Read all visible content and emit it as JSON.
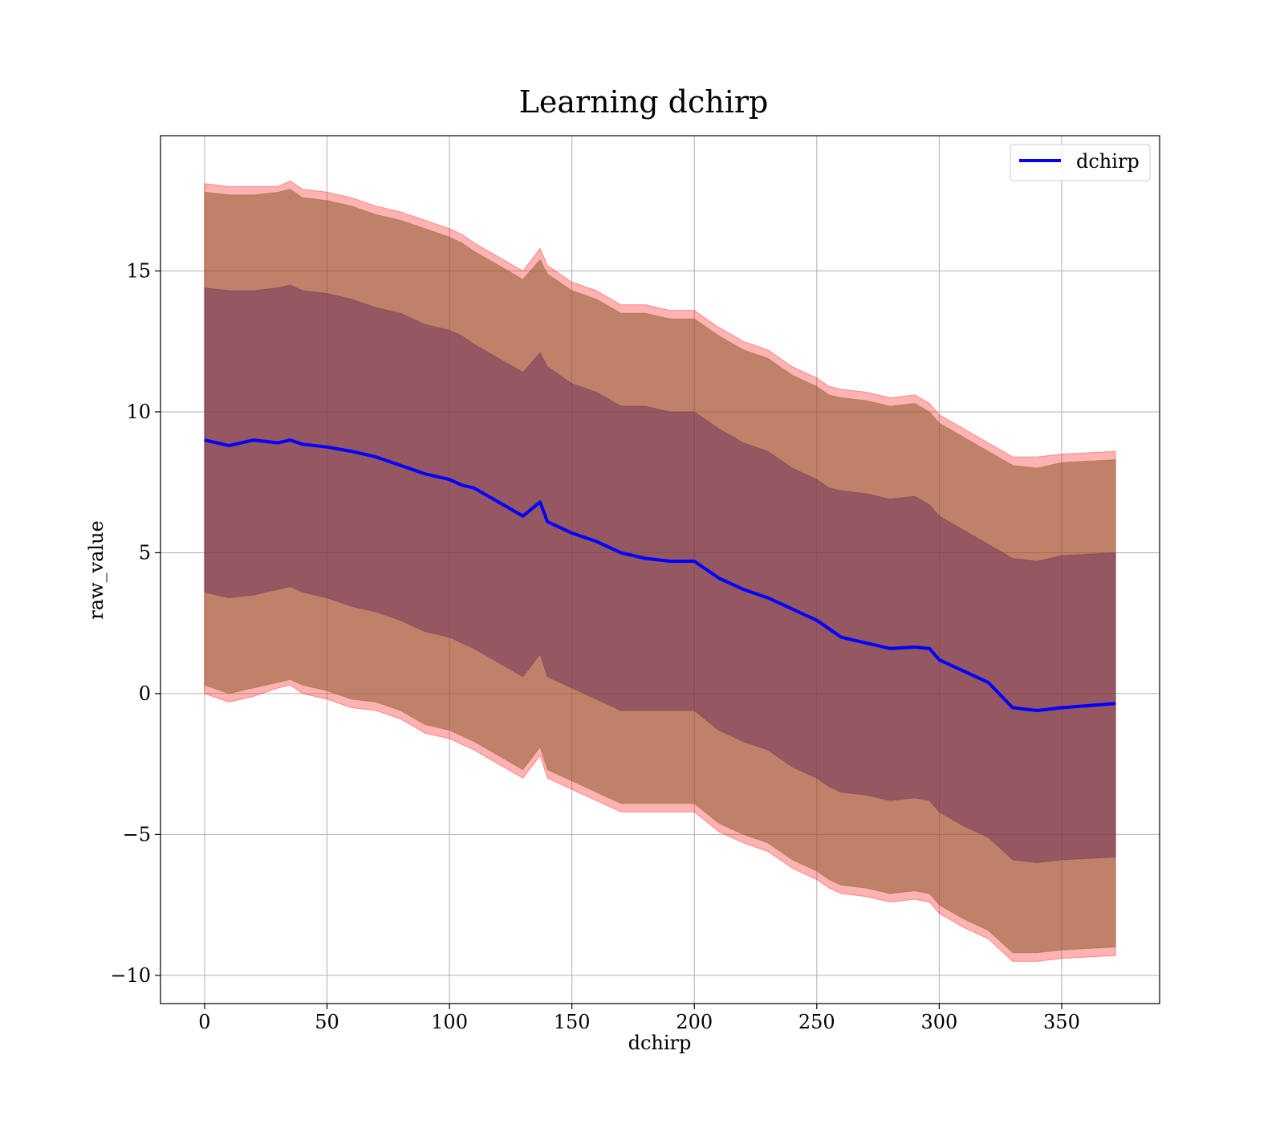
{
  "chart_data": {
    "type": "line",
    "title": "Learning dchirp",
    "xlabel": "dchirp",
    "ylabel": "raw_value",
    "xlim": [
      -18,
      390
    ],
    "ylim": [
      -11,
      19.8
    ],
    "xticks": [
      0,
      50,
      100,
      150,
      200,
      250,
      300,
      350
    ],
    "yticks": [
      -10,
      -5,
      0,
      5,
      10,
      15
    ],
    "ytick_labels": [
      "−10",
      "−5",
      "0",
      "5",
      "10",
      "15"
    ],
    "grid": true,
    "legend": {
      "position": "top-right",
      "entries": [
        "dchirp"
      ]
    },
    "colors": {
      "line": "#0000ff",
      "outer_band": "#ff0000",
      "middle_band": "#8b5a2b",
      "inner_band": "#6b2e5a",
      "grid": "#b0b0b0"
    },
    "series": [
      {
        "name": "dchirp",
        "x": [
          0,
          10,
          20,
          30,
          35,
          40,
          50,
          60,
          70,
          80,
          90,
          100,
          105,
          110,
          120,
          130,
          137,
          140,
          150,
          160,
          170,
          180,
          190,
          200,
          210,
          220,
          230,
          240,
          250,
          255,
          260,
          270,
          280,
          290,
          296,
          300,
          310,
          320,
          330,
          340,
          350,
          372
        ],
        "y": [
          9.0,
          8.8,
          9.0,
          8.9,
          9.0,
          8.85,
          8.75,
          8.6,
          8.4,
          8.1,
          7.8,
          7.6,
          7.4,
          7.3,
          6.8,
          6.3,
          6.8,
          6.1,
          5.7,
          5.4,
          5.0,
          4.8,
          4.7,
          4.7,
          4.1,
          3.7,
          3.4,
          3.0,
          2.6,
          2.3,
          2.0,
          1.8,
          1.6,
          1.65,
          1.6,
          1.2,
          0.8,
          0.4,
          -0.5,
          -0.6,
          -0.5,
          -0.35
        ]
      }
    ],
    "bands": [
      {
        "role": "outer",
        "upper": [
          18.1,
          18.0,
          18.0,
          18.0,
          18.2,
          17.9,
          17.8,
          17.6,
          17.3,
          17.1,
          16.8,
          16.5,
          16.3,
          16.0,
          15.5,
          15.0,
          15.8,
          15.2,
          14.6,
          14.3,
          13.8,
          13.8,
          13.6,
          13.6,
          13.0,
          12.5,
          12.2,
          11.6,
          11.2,
          10.9,
          10.8,
          10.7,
          10.5,
          10.6,
          10.3,
          9.9,
          9.4,
          8.9,
          8.4,
          8.4,
          8.5,
          8.6
        ],
        "lower": [
          0.0,
          -0.3,
          -0.1,
          0.2,
          0.3,
          0.0,
          -0.2,
          -0.5,
          -0.6,
          -0.9,
          -1.4,
          -1.6,
          -1.8,
          -2.0,
          -2.5,
          -3.0,
          -2.2,
          -3.0,
          -3.4,
          -3.8,
          -4.2,
          -4.2,
          -4.2,
          -4.2,
          -4.9,
          -5.3,
          -5.6,
          -6.2,
          -6.6,
          -6.9,
          -7.1,
          -7.2,
          -7.4,
          -7.3,
          -7.4,
          -7.8,
          -8.3,
          -8.7,
          -9.5,
          -9.5,
          -9.4,
          -9.3
        ]
      },
      {
        "role": "middle",
        "upper": [
          17.8,
          17.7,
          17.7,
          17.8,
          17.9,
          17.6,
          17.5,
          17.3,
          17.0,
          16.8,
          16.5,
          16.2,
          16.0,
          15.7,
          15.2,
          14.7,
          15.4,
          14.9,
          14.3,
          14.0,
          13.5,
          13.5,
          13.3,
          13.3,
          12.7,
          12.2,
          11.9,
          11.3,
          10.9,
          10.6,
          10.5,
          10.4,
          10.2,
          10.3,
          10.0,
          9.6,
          9.1,
          8.6,
          8.1,
          8.0,
          8.2,
          8.3
        ],
        "lower": [
          0.3,
          0.0,
          0.2,
          0.4,
          0.5,
          0.3,
          0.1,
          -0.2,
          -0.3,
          -0.6,
          -1.1,
          -1.3,
          -1.5,
          -1.7,
          -2.2,
          -2.7,
          -1.9,
          -2.7,
          -3.1,
          -3.5,
          -3.9,
          -3.9,
          -3.9,
          -3.9,
          -4.6,
          -5.0,
          -5.3,
          -5.9,
          -6.3,
          -6.6,
          -6.8,
          -6.9,
          -7.1,
          -7.0,
          -7.1,
          -7.5,
          -8.0,
          -8.4,
          -9.2,
          -9.2,
          -9.1,
          -9.0
        ]
      },
      {
        "role": "inner",
        "upper": [
          14.4,
          14.3,
          14.3,
          14.4,
          14.5,
          14.3,
          14.2,
          14.0,
          13.7,
          13.5,
          13.1,
          12.9,
          12.7,
          12.4,
          11.9,
          11.4,
          12.1,
          11.6,
          11.0,
          10.7,
          10.2,
          10.2,
          10.0,
          10.0,
          9.4,
          8.9,
          8.6,
          8.0,
          7.6,
          7.3,
          7.2,
          7.1,
          6.9,
          7.0,
          6.7,
          6.3,
          5.8,
          5.3,
          4.8,
          4.7,
          4.9,
          5.0
        ],
        "lower": [
          3.6,
          3.4,
          3.5,
          3.7,
          3.8,
          3.6,
          3.4,
          3.1,
          2.9,
          2.6,
          2.2,
          2.0,
          1.8,
          1.6,
          1.1,
          0.6,
          1.4,
          0.6,
          0.2,
          -0.2,
          -0.6,
          -0.6,
          -0.6,
          -0.6,
          -1.3,
          -1.7,
          -2.0,
          -2.6,
          -3.0,
          -3.3,
          -3.5,
          -3.6,
          -3.8,
          -3.7,
          -3.8,
          -4.2,
          -4.7,
          -5.1,
          -5.9,
          -6.0,
          -5.9,
          -5.8
        ]
      }
    ]
  }
}
